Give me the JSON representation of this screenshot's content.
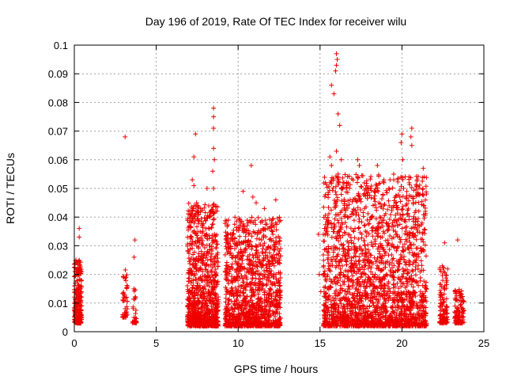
{
  "chart_data": {
    "type": "scatter",
    "title": "Day 196 of 2019, Rate Of TEC Index for receiver wilu",
    "xlabel": "GPS time / hours",
    "ylabel": "ROTI / TECUs",
    "xlim": [
      0,
      25
    ],
    "ylim": [
      0,
      0.1
    ],
    "xticks": [
      0,
      5,
      10,
      15,
      20,
      25
    ],
    "yticks": [
      0,
      0.01,
      0.02,
      0.03,
      0.04,
      0.05,
      0.06,
      0.07,
      0.08,
      0.09,
      0.1
    ],
    "xtick_labels": [
      "0",
      "5",
      "10",
      "15",
      "20",
      "25"
    ],
    "ytick_labels": [
      "0",
      "0.01",
      "0.02",
      "0.03",
      "0.04",
      "0.05",
      "0.06",
      "0.07",
      "0.08",
      "0.09",
      "0.1"
    ],
    "grid": true,
    "marker": "+",
    "series_color": "#ee0000",
    "series": [
      {
        "name": "ROTI",
        "clusters": [
          {
            "x_range": [
              0.0,
              0.45
            ],
            "y_range": [
              0.003,
              0.025
            ],
            "count": 260
          },
          {
            "x_range": [
              2.95,
              3.25
            ],
            "y_range": [
              0.005,
              0.022
            ],
            "count": 50
          },
          {
            "x_range": [
              3.55,
              3.8
            ],
            "y_range": [
              0.003,
              0.015
            ],
            "count": 30
          },
          {
            "x_range": [
              6.9,
              8.8
            ],
            "y_range": [
              0.002,
              0.045
            ],
            "count": 950
          },
          {
            "x_range": [
              9.2,
              12.6
            ],
            "y_range": [
              0.002,
              0.04
            ],
            "count": 1200
          },
          {
            "x_range": [
              15.2,
              21.5
            ],
            "y_range": [
              0.002,
              0.055
            ],
            "count": 2200
          },
          {
            "x_range": [
              22.3,
              22.8
            ],
            "y_range": [
              0.003,
              0.023
            ],
            "count": 110
          },
          {
            "x_range": [
              23.2,
              23.8
            ],
            "y_range": [
              0.003,
              0.015
            ],
            "count": 110
          }
        ],
        "highlights": [
          {
            "x": 0.1,
            "y": 0.025
          },
          {
            "x": 0.3,
            "y": 0.036
          },
          {
            "x": 0.3,
            "y": 0.033
          },
          {
            "x": 3.1,
            "y": 0.068
          },
          {
            "x": 3.7,
            "y": 0.032
          },
          {
            "x": 3.65,
            "y": 0.026
          },
          {
            "x": 7.4,
            "y": 0.069
          },
          {
            "x": 7.3,
            "y": 0.061
          },
          {
            "x": 7.2,
            "y": 0.053
          },
          {
            "x": 7.3,
            "y": 0.051
          },
          {
            "x": 7.5,
            "y": 0.042
          },
          {
            "x": 8.1,
            "y": 0.05
          },
          {
            "x": 8.5,
            "y": 0.078
          },
          {
            "x": 8.5,
            "y": 0.075
          },
          {
            "x": 8.5,
            "y": 0.071
          },
          {
            "x": 8.5,
            "y": 0.064
          },
          {
            "x": 8.55,
            "y": 0.06
          },
          {
            "x": 8.45,
            "y": 0.056
          },
          {
            "x": 8.5,
            "y": 0.05
          },
          {
            "x": 10.8,
            "y": 0.058
          },
          {
            "x": 10.3,
            "y": 0.049
          },
          {
            "x": 10.9,
            "y": 0.047
          },
          {
            "x": 11.1,
            "y": 0.045
          },
          {
            "x": 11.6,
            "y": 0.043
          },
          {
            "x": 12.3,
            "y": 0.046
          },
          {
            "x": 14.9,
            "y": 0.034
          },
          {
            "x": 14.95,
            "y": 0.02
          },
          {
            "x": 15.05,
            "y": 0.014
          },
          {
            "x": 15.7,
            "y": 0.086
          },
          {
            "x": 15.85,
            "y": 0.083
          },
          {
            "x": 16.0,
            "y": 0.097
          },
          {
            "x": 16.05,
            "y": 0.095
          },
          {
            "x": 16.0,
            "y": 0.093
          },
          {
            "x": 15.95,
            "y": 0.091
          },
          {
            "x": 16.1,
            "y": 0.076
          },
          {
            "x": 16.2,
            "y": 0.072
          },
          {
            "x": 15.6,
            "y": 0.061
          },
          {
            "x": 15.7,
            "y": 0.058
          },
          {
            "x": 16.0,
            "y": 0.063
          },
          {
            "x": 16.3,
            "y": 0.06
          },
          {
            "x": 16.1,
            "y": 0.055
          },
          {
            "x": 16.4,
            "y": 0.052
          },
          {
            "x": 17.3,
            "y": 0.06
          },
          {
            "x": 17.4,
            "y": 0.058
          },
          {
            "x": 18.5,
            "y": 0.058
          },
          {
            "x": 18.9,
            "y": 0.052
          },
          {
            "x": 19.5,
            "y": 0.053
          },
          {
            "x": 19.2,
            "y": 0.05
          },
          {
            "x": 20.0,
            "y": 0.069
          },
          {
            "x": 19.95,
            "y": 0.066
          },
          {
            "x": 20.05,
            "y": 0.06
          },
          {
            "x": 20.6,
            "y": 0.071
          },
          {
            "x": 20.55,
            "y": 0.068
          },
          {
            "x": 20.6,
            "y": 0.065
          },
          {
            "x": 20.1,
            "y": 0.05
          },
          {
            "x": 21.3,
            "y": 0.057
          },
          {
            "x": 21.35,
            "y": 0.054
          },
          {
            "x": 21.1,
            "y": 0.048
          },
          {
            "x": 23.4,
            "y": 0.032
          },
          {
            "x": 22.6,
            "y": 0.031
          }
        ]
      }
    ]
  }
}
